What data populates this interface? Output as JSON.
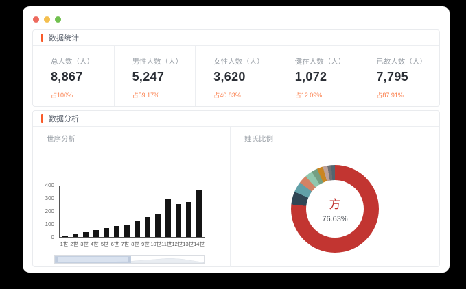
{
  "window": {
    "traffic_lights": {
      "close": "#ed6a5e",
      "minimize": "#f4bf4f",
      "zoom": "#71c04f"
    }
  },
  "theme": {
    "accent_color": "#f95a29",
    "percent_color": "#fb7c48",
    "card_border": "#e9ebee"
  },
  "stats_section": {
    "title": "数据统计",
    "cards": [
      {
        "label": "总人数（人）",
        "value": "8,867",
        "percent": "占100%"
      },
      {
        "label": "男性人数（人）",
        "value": "5,247",
        "percent": "占59.17%"
      },
      {
        "label": "女性人数（人）",
        "value": "3,620",
        "percent": "占40.83%"
      },
      {
        "label": "健在人数（人）",
        "value": "1,072",
        "percent": "占12.09%"
      },
      {
        "label": "已故人数（人）",
        "value": "7,795",
        "percent": "占87.91%"
      }
    ]
  },
  "analysis_section": {
    "title": "数据分析",
    "left_chart_title": "世序分析",
    "right_chart_title": "姓氏比例"
  },
  "chart_data": [
    {
      "type": "bar",
      "title": "世序分析",
      "categories": [
        "1世",
        "2世",
        "3世",
        "4世",
        "5世",
        "6世",
        "7世",
        "8世",
        "9世",
        "10世",
        "11世",
        "12世",
        "13世",
        "14世"
      ],
      "values": [
        8,
        22,
        35,
        50,
        70,
        82,
        92,
        125,
        150,
        175,
        290,
        250,
        270,
        360
      ],
      "xlabel": "",
      "ylabel": "",
      "ylim": [
        0,
        400
      ],
      "yticks": [
        0,
        100,
        200,
        300,
        400
      ],
      "grid": false,
      "bar_color": "#141414",
      "datazoom": {
        "window_pct": [
          0,
          51
        ],
        "shadow_profile": [
          1,
          1,
          1,
          1,
          1,
          2,
          2,
          2,
          2,
          3,
          3,
          4,
          5,
          6,
          7,
          8,
          8,
          7,
          5,
          3,
          1
        ]
      }
    },
    {
      "type": "pie",
      "title": "姓氏比例",
      "center_label": "方",
      "center_value": "76.63%",
      "center_label_color": "#c23531",
      "slices": [
        {
          "label": "方",
          "value": 76.63,
          "color": "#c23531"
        },
        {
          "label": "",
          "value": 4.7,
          "color": "#2f4554"
        },
        {
          "label": "",
          "value": 3.9,
          "color": "#61a0a8"
        },
        {
          "label": "",
          "value": 3.1,
          "color": "#d48265"
        },
        {
          "label": "",
          "value": 2.8,
          "color": "#91c7ae"
        },
        {
          "label": "",
          "value": 2.2,
          "color": "#749f83"
        },
        {
          "label": "",
          "value": 2.2,
          "color": "#ca8622"
        },
        {
          "label": "",
          "value": 1.7,
          "color": "#bda29a"
        },
        {
          "label": "",
          "value": 1.4,
          "color": "#6e7074"
        },
        {
          "label": "",
          "value": 1.37,
          "color": "#546570"
        }
      ],
      "legend": false
    }
  ]
}
